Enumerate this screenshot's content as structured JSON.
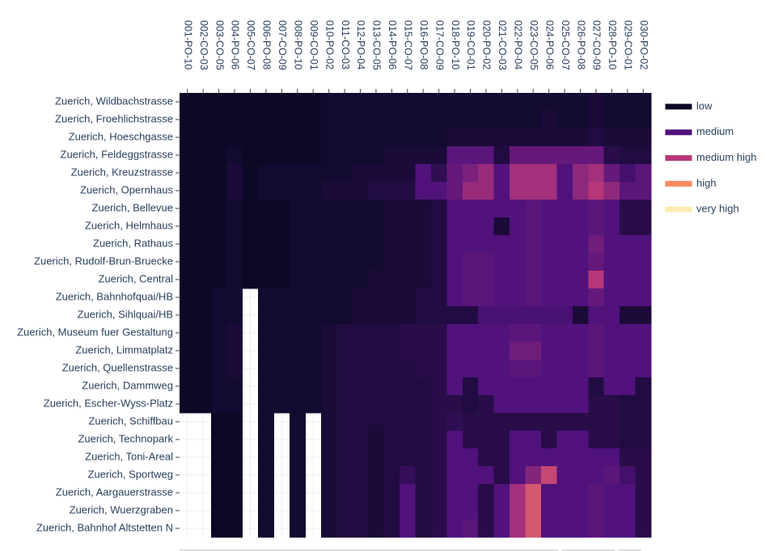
{
  "chart_data": {
    "type": "heatmap",
    "x": [
      "001-PO-10",
      "002-CO-03",
      "003-CO-05",
      "004-PO-06",
      "005-CO-07",
      "006-PO-08",
      "007-CO-09",
      "008-PO-10",
      "009-CO-01",
      "010-PO-02",
      "011-CO-03",
      "012-PO-04",
      "013-CO-05",
      "014-PO-06",
      "015-CO-07",
      "016-PO-08",
      "017-CO-09",
      "018-PO-10",
      "019-CO-01",
      "020-PO-02",
      "021-CO-03",
      "022-PO-04",
      "023-CO-05",
      "024-PO-06",
      "025-CO-07",
      "026-PO-08",
      "027-CO-09",
      "028-PO-10",
      "029-CO-01",
      "030-PO-02"
    ],
    "y": [
      "Zuerich, Wildbachstrasse",
      "Zuerich, Froehlichstrasse",
      "Zuerich, Hoeschgasse",
      "Zuerich, Feldeggstrasse",
      "Zuerich, Kreuzstrasse",
      "Zuerich, Opernhaus",
      "Zuerich, Bellevue",
      "Zuerich, Helmhaus",
      "Zuerich, Rathaus",
      "Zuerich, Rudolf-Brun-Bruecke",
      "Zuerich, Central",
      "Zuerich, Bahnhofquai/HB",
      "Zuerich, Sihlquai/HB",
      "Zuerich, Museum fuer Gestaltung",
      "Zuerich, Limmatplatz",
      "Zuerich, Quellenstrasse",
      "Zuerich, Dammweg",
      "Zuerich, Escher-Wyss-Platz",
      "Zuerich, Schiffbau",
      "Zuerich, Technopark",
      "Zuerich, Toni-Areal",
      "Zuerich, Sportweg",
      "Zuerich, Aargauerstrasse",
      "Zuerich, Wuerzgraben",
      "Zuerich, Bahnhof Altstetten N"
    ],
    "z": [
      [
        0,
        0,
        0,
        0,
        0,
        0,
        0,
        0,
        0,
        0.1,
        0.1,
        0.1,
        0.1,
        0.1,
        0.1,
        0.1,
        0.1,
        0.1,
        0.1,
        0.1,
        0.1,
        0.1,
        0.1,
        0.1,
        0.1,
        0.1,
        0.2,
        0.1,
        0.1,
        0.1
      ],
      [
        0,
        0,
        0,
        0,
        0,
        0,
        0,
        0,
        0,
        0.1,
        0.1,
        0.1,
        0.1,
        0.1,
        0.1,
        0.1,
        0.1,
        0.1,
        0.1,
        0.1,
        0.1,
        0.1,
        0.1,
        0.2,
        0.1,
        0.1,
        0.2,
        0.1,
        0.1,
        0.1
      ],
      [
        0,
        0,
        0,
        0,
        0,
        0,
        0,
        0,
        0,
        0.1,
        0.1,
        0.1,
        0.1,
        0.1,
        0.1,
        0.1,
        0.1,
        0.2,
        0.2,
        0.2,
        0.2,
        0.2,
        0.2,
        0.2,
        0.2,
        0.2,
        0.3,
        0.2,
        0.2,
        0.2
      ],
      [
        0,
        0,
        0,
        0.1,
        0,
        0,
        0,
        0,
        0,
        0.1,
        0.1,
        0.1,
        0.1,
        0.2,
        0.2,
        0.2,
        0.2,
        1.1,
        1.1,
        1.1,
        0.3,
        1.2,
        1.2,
        1.2,
        1.2,
        1.2,
        1.2,
        0.4,
        0.3,
        0.3
      ],
      [
        0,
        0,
        0,
        0.2,
        0,
        0.1,
        0.1,
        0.1,
        0.1,
        0.1,
        0.1,
        0.2,
        0.2,
        0.2,
        0.2,
        1.0,
        0.5,
        1.2,
        1.4,
        1.7,
        1.0,
        1.8,
        1.8,
        1.8,
        1.0,
        1.6,
        1.8,
        1.2,
        0.8,
        1.1
      ],
      [
        0,
        0,
        0,
        0.2,
        0,
        0.1,
        0.1,
        0.1,
        0.1,
        0.2,
        0.2,
        0.2,
        0.3,
        0.3,
        0.3,
        1.0,
        1.0,
        1.2,
        1.7,
        1.7,
        1.0,
        1.8,
        1.8,
        1.8,
        1.0,
        1.6,
        2.0,
        1.6,
        1.1,
        1.1
      ],
      [
        0,
        0,
        0,
        0.1,
        0,
        0,
        0,
        0.1,
        0.1,
        0.1,
        0.1,
        0.1,
        0.1,
        0.2,
        0.2,
        0.2,
        0.3,
        1.0,
        1.0,
        1.0,
        1.0,
        1.0,
        1.1,
        1.0,
        1.0,
        1.0,
        1.1,
        1.0,
        0.4,
        0.4
      ],
      [
        0,
        0,
        0,
        0.1,
        0,
        0,
        0,
        0.1,
        0.1,
        0.1,
        0.1,
        0.1,
        0.1,
        0.2,
        0.2,
        0.2,
        0.3,
        1.0,
        1.0,
        1.0,
        0.2,
        1.0,
        1.1,
        1.0,
        1.0,
        1.0,
        1.1,
        1.0,
        0.4,
        0.4
      ],
      [
        0,
        0,
        0,
        0.1,
        0,
        0,
        0,
        0.1,
        0.1,
        0.1,
        0.1,
        0.1,
        0.1,
        0.2,
        0.2,
        0.2,
        0.3,
        1.0,
        1.0,
        1.0,
        1.0,
        1.0,
        1.1,
        1.0,
        1.0,
        1.0,
        1.3,
        1.0,
        1.0,
        1.0
      ],
      [
        0,
        0,
        0,
        0.1,
        0,
        0,
        0,
        0.1,
        0.1,
        0.1,
        0.1,
        0.1,
        0.1,
        0.2,
        0.2,
        0.2,
        0.3,
        1.0,
        1.1,
        1.1,
        1.0,
        1.0,
        1.1,
        1.0,
        1.0,
        1.0,
        1.2,
        1.0,
        1.0,
        1.0
      ],
      [
        0,
        0,
        0,
        0.1,
        0,
        0,
        0,
        0.1,
        0.1,
        0.1,
        0.1,
        0.1,
        0.2,
        0.2,
        0.2,
        0.2,
        0.3,
        1.0,
        1.1,
        1.1,
        1.0,
        1.0,
        1.1,
        1.0,
        1.0,
        1.0,
        2.0,
        1.0,
        1.0,
        1.0
      ],
      [
        0,
        0,
        0.1,
        0.1,
        null,
        0.1,
        0.1,
        0.1,
        0.1,
        0.1,
        0.1,
        0.2,
        0.2,
        0.2,
        0.2,
        0.3,
        0.3,
        1.0,
        1.1,
        1.1,
        1.0,
        1.0,
        1.1,
        1.0,
        1.0,
        1.0,
        1.2,
        1.0,
        1.0,
        1.0
      ],
      [
        0,
        0,
        0.1,
        0.1,
        null,
        0.1,
        0.1,
        0.1,
        0.1,
        0.1,
        0.1,
        0.2,
        0.2,
        0.2,
        0.2,
        0.3,
        0.3,
        0.3,
        0.3,
        0.9,
        0.9,
        0.9,
        0.9,
        0.9,
        0.9,
        0.2,
        1.0,
        1.0,
        0.2,
        0.2
      ],
      [
        0,
        0,
        0.1,
        0.2,
        null,
        0.1,
        0.1,
        0.1,
        0.1,
        0.2,
        0.3,
        0.3,
        0.3,
        0.3,
        0.4,
        0.4,
        0.4,
        1.0,
        1.0,
        1.0,
        1.0,
        1.1,
        1.1,
        1.0,
        1.0,
        1.0,
        1.1,
        1.0,
        1.0,
        1.0
      ],
      [
        0,
        0,
        0.1,
        0.2,
        null,
        0.1,
        0.1,
        0.1,
        0.1,
        0.2,
        0.3,
        0.3,
        0.3,
        0.3,
        0.4,
        0.4,
        0.4,
        1.0,
        1.0,
        1.0,
        1.0,
        1.3,
        1.3,
        1.0,
        1.0,
        1.0,
        1.1,
        1.0,
        1.0,
        1.0
      ],
      [
        0,
        0,
        0.1,
        0.2,
        null,
        0.1,
        0.1,
        0.1,
        0.1,
        0.2,
        0.3,
        0.3,
        0.3,
        0.3,
        0.3,
        0.4,
        0.4,
        1.0,
        1.0,
        1.0,
        1.0,
        1.1,
        1.1,
        1.0,
        1.0,
        1.0,
        1.1,
        1.0,
        1.0,
        1.0
      ],
      [
        0,
        0,
        0.1,
        0.1,
        null,
        0.1,
        0.1,
        0.1,
        0.1,
        0.2,
        0.3,
        0.3,
        0.3,
        0.3,
        0.3,
        0.3,
        0.4,
        1.0,
        0.3,
        1.0,
        1.0,
        1.0,
        1.0,
        1.0,
        1.0,
        1.0,
        0.3,
        1.0,
        1.0,
        0.3
      ],
      [
        0,
        0,
        0.1,
        0.1,
        null,
        0.1,
        0.1,
        0.1,
        0.1,
        0.2,
        0.3,
        0.3,
        0.3,
        0.3,
        0.3,
        0.3,
        0.4,
        0.4,
        0.3,
        0.4,
        1.0,
        1.0,
        1.0,
        1.0,
        1.0,
        1.0,
        0.4,
        0.4,
        0.3,
        0.3
      ],
      [
        null,
        null,
        0,
        0,
        null,
        0.1,
        null,
        0.1,
        null,
        0.2,
        0.3,
        0.3,
        0.3,
        0.3,
        0.3,
        0.3,
        0.4,
        0.5,
        0.4,
        0.4,
        0.4,
        0.4,
        0.4,
        0.4,
        0.4,
        0.4,
        0.4,
        0.4,
        0.3,
        0.3
      ],
      [
        null,
        null,
        0,
        0,
        null,
        0.1,
        null,
        0.1,
        null,
        0.2,
        0.3,
        0.3,
        0.2,
        0.3,
        0.3,
        0.3,
        0.4,
        1.0,
        0.4,
        0.4,
        0.4,
        1.0,
        1.0,
        0.4,
        1.0,
        1.0,
        0.4,
        0.4,
        0.3,
        0.3
      ],
      [
        null,
        null,
        0,
        0,
        null,
        0.1,
        null,
        0.1,
        null,
        0.2,
        0.3,
        0.3,
        0.2,
        0.3,
        0.3,
        0.3,
        0.4,
        1.0,
        1.0,
        0.4,
        0.4,
        1.0,
        1.0,
        1.0,
        1.0,
        1.0,
        1.0,
        1.0,
        0.4,
        0.4
      ],
      [
        null,
        null,
        0,
        0,
        null,
        0.1,
        null,
        0.1,
        null,
        0.2,
        0.3,
        0.3,
        0.2,
        0.3,
        0.6,
        0.3,
        0.4,
        1.0,
        1.0,
        1.0,
        0.4,
        1.0,
        1.5,
        2.2,
        1.0,
        1.0,
        1.0,
        1.1,
        0.8,
        0.4
      ],
      [
        null,
        null,
        0,
        0,
        null,
        0.1,
        null,
        0.1,
        null,
        0.2,
        0.3,
        0.3,
        0.2,
        0.3,
        1.0,
        0.3,
        0.4,
        1.0,
        1.0,
        0.4,
        1.0,
        1.8,
        2.4,
        1.0,
        1.0,
        1.0,
        1.1,
        1.0,
        1.0,
        0.4
      ],
      [
        null,
        null,
        0,
        0,
        null,
        0.1,
        null,
        0.1,
        null,
        0.2,
        0.3,
        0.3,
        0.2,
        0.3,
        1.0,
        0.3,
        0.4,
        1.0,
        1.0,
        0.4,
        1.0,
        1.8,
        2.4,
        1.0,
        1.0,
        1.0,
        1.1,
        1.0,
        1.0,
        0.4
      ],
      [
        null,
        null,
        0,
        0,
        null,
        0.1,
        null,
        0.1,
        null,
        0.2,
        0.3,
        0.3,
        0.2,
        0.3,
        1.0,
        0.3,
        0.4,
        1.0,
        1.1,
        0.4,
        1.0,
        1.8,
        2.4,
        1.0,
        1.0,
        1.0,
        1.1,
        1.0,
        1.0,
        0.4
      ]
    ],
    "zlim": [
      0,
      4
    ],
    "legend": [
      {
        "name": "low",
        "color": "#0c0927"
      },
      {
        "name": "medium",
        "color": "#51127c"
      },
      {
        "name": "medium high",
        "color": "#b73779"
      },
      {
        "name": "high",
        "color": "#fc8961"
      },
      {
        "name": "very high",
        "color": "#fcecb3"
      }
    ]
  }
}
